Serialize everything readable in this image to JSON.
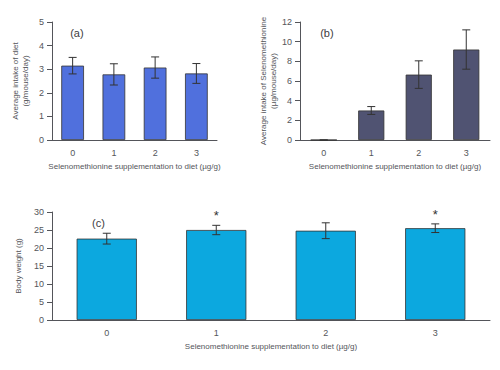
{
  "chart_data": [
    {
      "type": "bar",
      "title": "(a)",
      "categories": [
        "0",
        "1",
        "2",
        "3"
      ],
      "values": [
        3.15,
        2.78,
        3.07,
        2.82
      ],
      "errors": [
        0.35,
        0.45,
        0.45,
        0.42
      ],
      "ylim": [
        0,
        5
      ],
      "yticks": [
        0,
        1,
        2,
        3,
        4,
        5
      ],
      "ylabel": "Average intake of diet\n(g/mouse/day)",
      "xlabel": "Selenomethionine supplementation to diet (µg/g)",
      "grid": false
    },
    {
      "type": "bar",
      "title": "(b)",
      "categories": [
        "0",
        "1",
        "2",
        "3"
      ],
      "values": [
        0,
        3.0,
        6.65,
        9.2
      ],
      "errors": [
        0,
        0.4,
        1.4,
        2.0
      ],
      "ylim": [
        0,
        12
      ],
      "yticks": [
        0,
        2,
        4,
        6,
        8,
        10,
        12
      ],
      "ylabel": "Average intake of Selenomethionine\n(µg/mouse/day)",
      "xlabel": "Selenomethionine supplementation to diet (µg/g)",
      "grid": false
    },
    {
      "type": "bar",
      "title": "(c)",
      "categories": [
        "0",
        "1",
        "2",
        "3"
      ],
      "values": [
        22.6,
        25.0,
        24.8,
        25.5
      ],
      "errors": [
        1.5,
        1.3,
        2.2,
        1.2
      ],
      "ylim": [
        0,
        30
      ],
      "yticks": [
        0,
        5,
        10,
        15,
        20,
        25,
        30
      ],
      "ylabel": "Body weight (g)",
      "xlabel": "Selenomethionine supplementation to diet (µg/g)",
      "annotations": [
        {
          "category": "1",
          "text": "*"
        },
        {
          "category": "3",
          "text": "*"
        }
      ],
      "grid": false
    }
  ]
}
